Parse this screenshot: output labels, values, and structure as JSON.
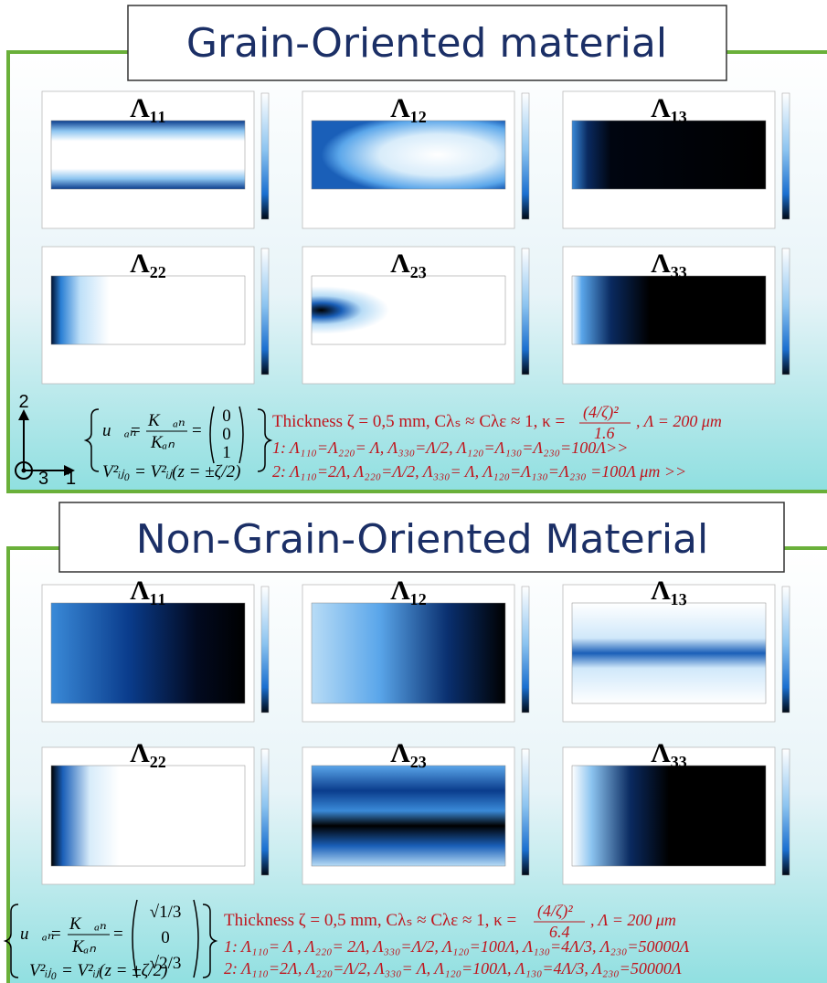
{
  "sections": [
    {
      "title": "Grain-Oriented material",
      "panels": [
        "Λ₁₁",
        "Λ₁₂",
        "Λ₁₃",
        "Λ₂₂",
        "Λ₂₃",
        "Λ₃₃"
      ],
      "axes": [
        "2",
        "3",
        "1"
      ],
      "equation": {
        "lhs": "u⃗ₐₙ",
        "numerator": "K⃗ₐₙ",
        "denominator": "Kₐₙ",
        "vector": [
          "0",
          "0",
          "1"
        ],
        "line2": "V²ᵢⱼ₀ = V²ᵢⱼ(z = ±ζ/2)"
      },
      "thickness": {
        "before": "Thickness ζ = 0,5 mm, Cλₛ ≈ Cλε ≈ 1, κ =",
        "numerator": "(4/ζ)²",
        "denominator": "1.6",
        "after": ", Λ = 200 μm"
      },
      "cases": [
        "1: Λ₁₁₀=Λ₂₂₀= Λ, Λ₃₃₀=Λ/2, Λ₁₂₀=Λ₁₃₀=Λ₂₃₀=100Λ>>",
        "2: Λ₁₁₀=2Λ, Λ₂₂₀=Λ/2, Λ₃₃₀= Λ, Λ₁₂₀=Λ₁₃₀=Λ₂₃₀ =100Λ μm >>"
      ]
    },
    {
      "title": "Non-Grain-Oriented Material",
      "panels": [
        "Λ₁₁",
        "Λ₁₂",
        "Λ₁₃",
        "Λ₂₂",
        "Λ₂₃",
        "Λ₃₃"
      ],
      "equation": {
        "lhs": "u⃗ₐₙ",
        "numerator": "K⃗ₐₙ",
        "denominator": "Kₐₙ",
        "vector": [
          "√1/3",
          "0",
          "√2/3"
        ],
        "line2": "V²ᵢⱼ₀ = V²ᵢⱼ(z = ±ζ/2)"
      },
      "thickness": {
        "before": "Thickness ζ = 0,5 mm, Cλₛ ≈ Cλε ≈ 1, κ =",
        "numerator": "(4/ζ)²",
        "denominator": "6.4",
        "after": ", Λ = 200 μm"
      },
      "cases": [
        "1: Λ₁₁₀= Λ , Λ₂₂₀= 2Λ, Λ₃₃₀=Λ/2, Λ₁₂₀=100Λ, Λ₁₃₀=4Λ/3, Λ₂₃₀=50000Λ",
        "2: Λ₁₁₀=2Λ, Λ₂₂₀=Λ/2, Λ₃₃₀= Λ, Λ₁₂₀=100Λ, Λ₁₃₀=4Λ/3, Λ₂₃₀=50000Λ"
      ]
    }
  ]
}
